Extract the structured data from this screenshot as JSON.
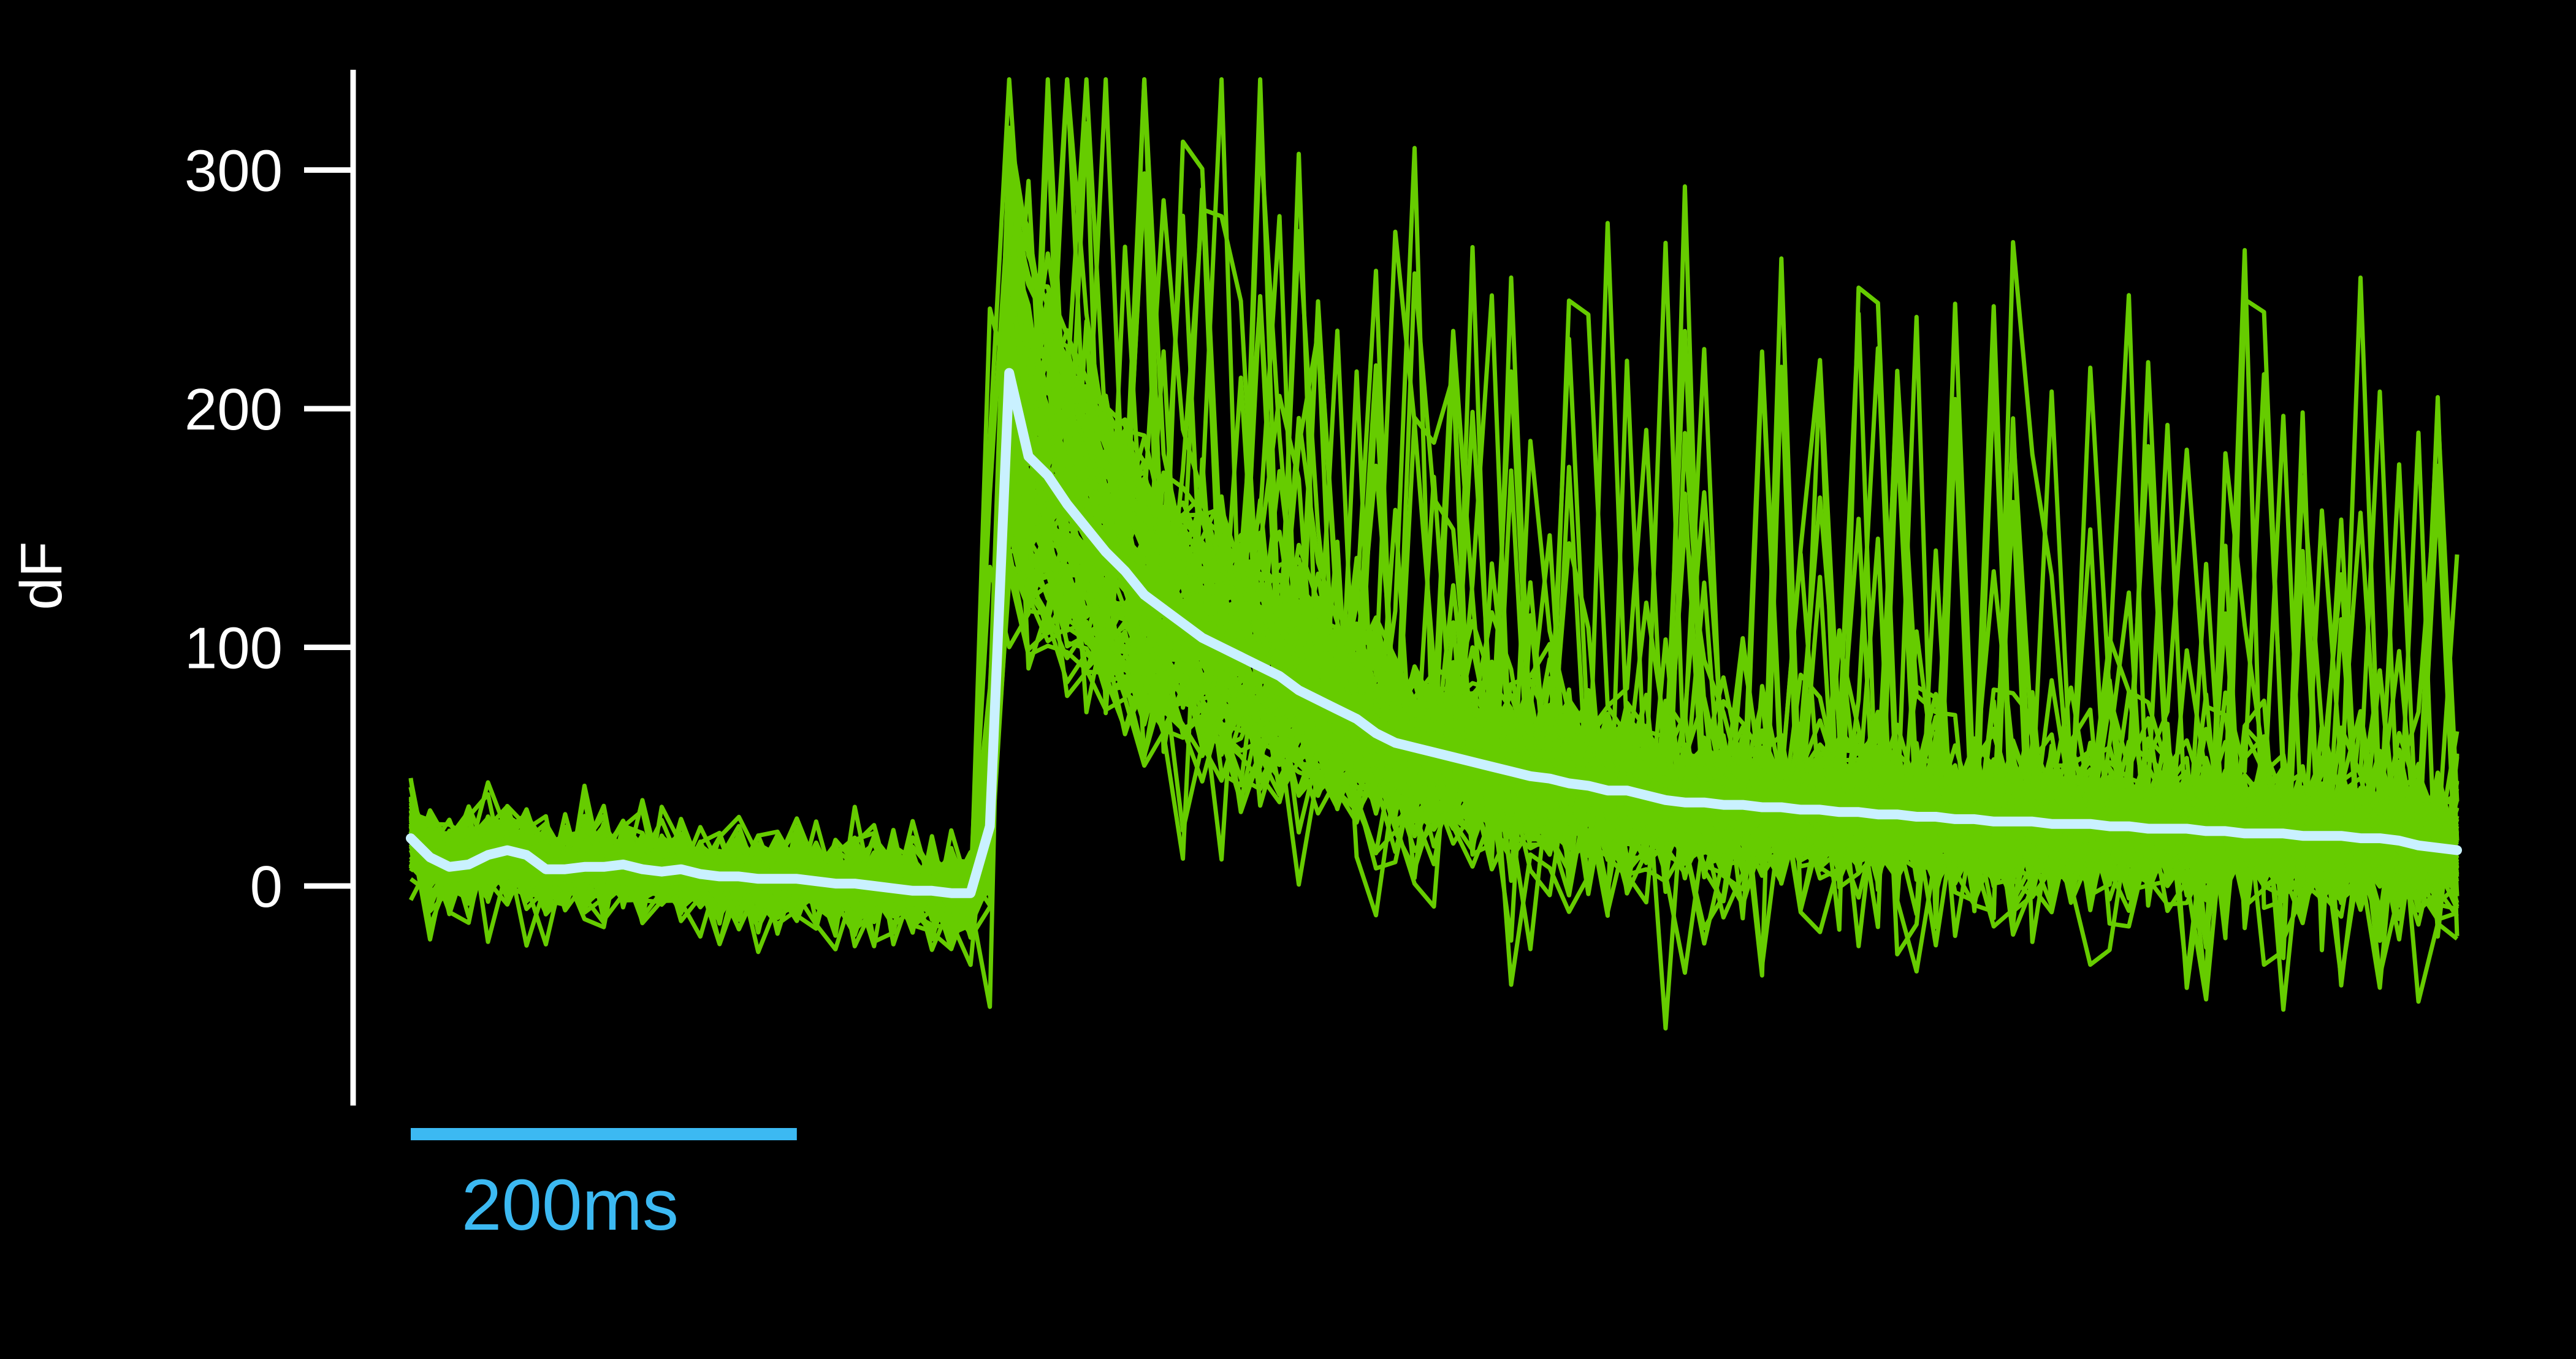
{
  "chart_data": {
    "type": "line",
    "title": "",
    "xlabel": "",
    "ylabel": "dF",
    "y_ticks": [
      0,
      100,
      200,
      300
    ],
    "y_tick_labels": [
      "0",
      "100",
      "200",
      "300"
    ],
    "ylim": [
      -92,
      342
    ],
    "xlim_ms": [
      0,
      1040
    ],
    "x_sample_interval_ms": 10,
    "grid": false,
    "legend": "none",
    "scale_bar": {
      "label": "200ms",
      "duration_ms": 200
    },
    "colors": {
      "background": "#000000",
      "axis": "#ffffff",
      "trials": "#66cc00",
      "mean": "#c9f1ff",
      "scale_bar": "#3cb9f2"
    },
    "series": [
      {
        "role": "trials",
        "count": 120
      },
      {
        "role": "mean",
        "values": [
          20,
          12,
          8,
          9,
          13,
          15,
          13,
          7,
          7,
          8,
          8,
          9,
          7,
          6,
          7,
          5,
          4,
          4,
          3,
          3,
          3,
          2,
          1,
          1,
          0,
          -1,
          -2,
          -2,
          -3,
          -3,
          25,
          215,
          180,
          172,
          160,
          150,
          140,
          132,
          122,
          116,
          110,
          104,
          100,
          96,
          92,
          88,
          82,
          78,
          74,
          70,
          64,
          60,
          58,
          56,
          54,
          52,
          50,
          48,
          46,
          45,
          43,
          42,
          40,
          40,
          38,
          36,
          35,
          35,
          34,
          34,
          33,
          33,
          32,
          32,
          31,
          31,
          30,
          30,
          29,
          29,
          28,
          28,
          27,
          27,
          27,
          26,
          26,
          26,
          25,
          25,
          24,
          24,
          24,
          23,
          23,
          22,
          22,
          22,
          21,
          21,
          21,
          20,
          20,
          19,
          17,
          16,
          15
        ]
      }
    ]
  }
}
